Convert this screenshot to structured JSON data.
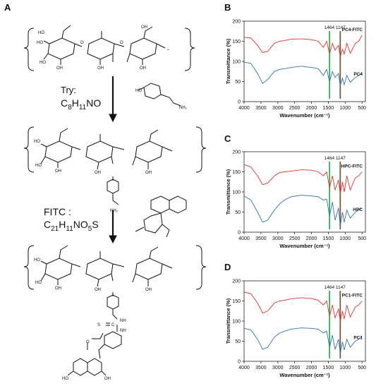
{
  "panels": {
    "A": {
      "letter": "A",
      "step1": {
        "label": "Try:",
        "formula_main": "C",
        "formula_parts": [
          "C",
          "8",
          "H",
          "11",
          "NO"
        ]
      },
      "step2": {
        "label": "FITC :",
        "formula_parts": [
          "C",
          "21",
          "H",
          "11",
          "NO",
          "5",
          "S"
        ]
      },
      "groups": {
        "oh": "OH",
        "ho": "HO",
        "o": "O",
        "nh2": "NH",
        "nh2_sub": "2",
        "nh": "NH",
        "s_eq_c": "S",
        "c": "C",
        "sugar_link": "O",
        "wave": "∼"
      }
    },
    "B": {
      "letter": "B"
    },
    "C": {
      "letter": "C"
    },
    "D": {
      "letter": "D"
    }
  },
  "chart_data": [
    {
      "type": "line",
      "panel": "B",
      "xlabel": "Wavenumber (cm⁻¹)",
      "ylabel": "Transmittance (%)",
      "xlim": [
        4000,
        400
      ],
      "ylim": [
        0,
        200
      ],
      "x_ticks": [
        "4000",
        "3500",
        "3000",
        "2500",
        "2000",
        "1500",
        "1000",
        "500"
      ],
      "y_ticks": [
        "0",
        "50",
        "100",
        "150",
        "200"
      ],
      "markers": [
        "1464",
        "1147"
      ],
      "marker_values": [
        1464,
        1147
      ],
      "marker_colors": [
        "#2bb24c",
        "#7a5a3c"
      ],
      "series": [
        {
          "name": "PC4-FITC",
          "color": "#e8312f",
          "x": [
            4000,
            3800,
            3600,
            3450,
            3300,
            3100,
            2950,
            2800,
            2600,
            2300,
            2000,
            1800,
            1650,
            1550,
            1464,
            1380,
            1300,
            1200,
            1147,
            1080,
            1030,
            950,
            850,
            700,
            600,
            500
          ],
          "y": [
            160,
            158,
            140,
            122,
            125,
            145,
            150,
            152,
            155,
            156,
            154,
            150,
            135,
            150,
            118,
            145,
            128,
            140,
            112,
            130,
            118,
            145,
            120,
            145,
            150,
            165
          ]
        },
        {
          "name": "PC4",
          "color": "#2e6fb5",
          "x": [
            4000,
            3800,
            3600,
            3450,
            3300,
            3100,
            2950,
            2800,
            2600,
            2300,
            2000,
            1800,
            1650,
            1550,
            1464,
            1380,
            1300,
            1200,
            1147,
            1080,
            1030,
            950,
            850,
            700,
            600,
            500
          ],
          "y": [
            98,
            95,
            70,
            45,
            55,
            75,
            80,
            82,
            85,
            88,
            85,
            82,
            65,
            80,
            50,
            75,
            60,
            70,
            40,
            58,
            42,
            65,
            48,
            60,
            65,
            72
          ]
        }
      ]
    },
    {
      "type": "line",
      "panel": "C",
      "xlabel": "Wavenumber (cm⁻¹)",
      "ylabel": "Transmittance (%)",
      "xlim": [
        4000,
        400
      ],
      "ylim": [
        0,
        200
      ],
      "x_ticks": [
        "4000",
        "3500",
        "3000",
        "2500",
        "2000",
        "1500",
        "1000",
        "500"
      ],
      "y_ticks": [
        "0",
        "50",
        "100",
        "150",
        "200"
      ],
      "markers": [
        "1464",
        "1147"
      ],
      "marker_values": [
        1464,
        1147
      ],
      "marker_colors": [
        "#2bb24c",
        "#7a5a3c"
      ],
      "series": [
        {
          "name": "HPC-FITC",
          "color": "#e8312f",
          "x": [
            4000,
            3800,
            3600,
            3450,
            3300,
            3100,
            2950,
            2800,
            2600,
            2300,
            2000,
            1800,
            1650,
            1550,
            1464,
            1380,
            1300,
            1200,
            1147,
            1080,
            1030,
            950,
            850,
            700,
            600,
            500
          ],
          "y": [
            168,
            162,
            140,
            118,
            122,
            140,
            148,
            150,
            152,
            155,
            154,
            150,
            140,
            150,
            110,
            140,
            105,
            130,
            95,
            125,
            100,
            140,
            105,
            135,
            140,
            150
          ]
        },
        {
          "name": "HPC",
          "color": "#2e6fb5",
          "x": [
            4000,
            3800,
            3600,
            3450,
            3300,
            3100,
            2950,
            2800,
            2600,
            2300,
            2000,
            1800,
            1650,
            1550,
            1464,
            1380,
            1300,
            1200,
            1147,
            1080,
            1030,
            950,
            850,
            700,
            600,
            500
          ],
          "y": [
            90,
            80,
            50,
            25,
            30,
            55,
            70,
            80,
            88,
            92,
            90,
            88,
            80,
            82,
            40,
            75,
            30,
            60,
            15,
            50,
            25,
            55,
            35,
            50,
            55,
            60
          ]
        }
      ]
    },
    {
      "type": "line",
      "panel": "D",
      "xlabel": "Wavenumber (cm⁻¹)",
      "ylabel": "Transmittance (%)",
      "xlim": [
        4000,
        400
      ],
      "ylim": [
        0,
        200
      ],
      "x_ticks": [
        "4000",
        "3500",
        "3000",
        "2500",
        "2000",
        "1500",
        "1000",
        "500"
      ],
      "y_ticks": [
        "0",
        "50",
        "100",
        "150",
        "200"
      ],
      "markers": [
        "1464",
        "1147"
      ],
      "marker_values": [
        1464,
        1147
      ],
      "marker_colors": [
        "#2bb24c",
        "#7a5a3c"
      ],
      "series": [
        {
          "name": "PC1-FITC",
          "color": "#e8312f",
          "x": [
            4000,
            3800,
            3600,
            3450,
            3300,
            3100,
            2950,
            2800,
            2600,
            2300,
            2000,
            1800,
            1650,
            1550,
            1464,
            1380,
            1300,
            1200,
            1147,
            1080,
            1030,
            950,
            850,
            700,
            600,
            500
          ],
          "y": [
            172,
            168,
            145,
            120,
            125,
            145,
            150,
            152,
            155,
            158,
            156,
            152,
            140,
            150,
            112,
            140,
            108,
            130,
            100,
            125,
            105,
            140,
            110,
            135,
            140,
            150
          ]
        },
        {
          "name": "PC1",
          "color": "#2e6fb5",
          "x": [
            4000,
            3800,
            3600,
            3450,
            3300,
            3100,
            2950,
            2800,
            2600,
            2300,
            2000,
            1800,
            1650,
            1550,
            1464,
            1380,
            1300,
            1200,
            1147,
            1080,
            1030,
            950,
            850,
            700,
            600,
            500
          ],
          "y": [
            82,
            78,
            55,
            30,
            35,
            60,
            70,
            75,
            80,
            83,
            82,
            80,
            70,
            75,
            35,
            65,
            30,
            55,
            20,
            48,
            28,
            55,
            35,
            50,
            55,
            62
          ]
        }
      ]
    }
  ]
}
